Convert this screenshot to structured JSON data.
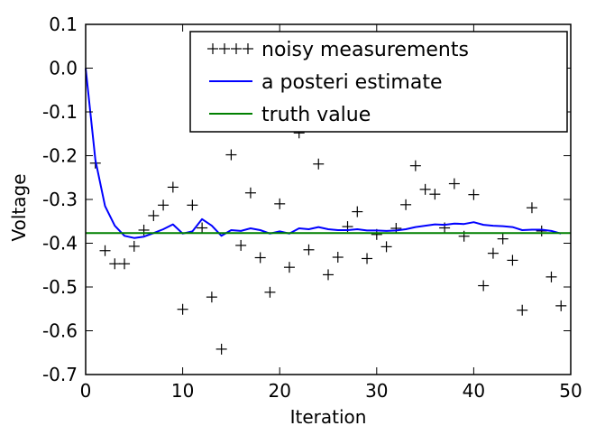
{
  "chart_data": {
    "type": "line",
    "title": "",
    "xlabel": "Iteration",
    "ylabel": "Voltage",
    "xlim": [
      0,
      50
    ],
    "ylim": [
      -0.7,
      0.1
    ],
    "xticks": [
      0,
      10,
      20,
      30,
      40,
      50
    ],
    "yticks": [
      0.1,
      0.0,
      -0.1,
      -0.2,
      -0.3,
      -0.4,
      -0.5,
      -0.6,
      -0.7
    ],
    "xtick_labels": [
      "0",
      "10",
      "20",
      "30",
      "40",
      "50"
    ],
    "ytick_labels": [
      "0.1",
      "0.0",
      "-0.1",
      "-0.2",
      "-0.3",
      "-0.4",
      "-0.5",
      "-0.6",
      "-0.7"
    ],
    "grid": false,
    "legend_position": "top-right",
    "series": [
      {
        "name": "noisy measurements",
        "style": "markers",
        "marker": "+",
        "color": "#000000",
        "x": [
          1,
          2,
          3,
          4,
          5,
          6,
          7,
          8,
          9,
          10,
          11,
          12,
          13,
          14,
          15,
          16,
          17,
          18,
          19,
          20,
          21,
          22,
          23,
          24,
          25,
          26,
          27,
          28,
          29,
          30,
          31,
          32,
          33,
          34,
          35,
          36,
          37,
          38,
          39,
          40,
          41,
          42,
          43,
          44,
          45,
          46,
          47,
          48,
          49
        ],
        "values": [
          -0.217,
          -0.417,
          -0.447,
          -0.447,
          -0.407,
          -0.37,
          -0.337,
          -0.313,
          -0.272,
          -0.551,
          -0.313,
          -0.365,
          -0.523,
          -0.642,
          -0.198,
          -0.405,
          -0.285,
          -0.433,
          -0.512,
          -0.31,
          -0.455,
          -0.148,
          -0.415,
          -0.219,
          -0.472,
          -0.432,
          -0.362,
          -0.328,
          -0.435,
          -0.38,
          -0.408,
          -0.366,
          -0.312,
          -0.223,
          -0.277,
          -0.288,
          -0.365,
          -0.264,
          -0.384,
          -0.289,
          -0.497,
          -0.423,
          -0.39,
          -0.439,
          -0.553,
          -0.319,
          -0.372,
          -0.477,
          -0.543
        ]
      },
      {
        "name": "a posteri estimate",
        "style": "line",
        "color": "#0000ff",
        "x": [
          0,
          1,
          2,
          3,
          4,
          5,
          6,
          7,
          8,
          9,
          10,
          11,
          12,
          13,
          14,
          15,
          16,
          17,
          18,
          19,
          20,
          21,
          22,
          23,
          24,
          25,
          26,
          27,
          28,
          29,
          30,
          31,
          32,
          33,
          34,
          35,
          36,
          37,
          38,
          39,
          40,
          41,
          42,
          43,
          44,
          45,
          46,
          47,
          48,
          49
        ],
        "values": [
          0.0,
          -0.21,
          -0.315,
          -0.36,
          -0.383,
          -0.388,
          -0.385,
          -0.377,
          -0.368,
          -0.357,
          -0.378,
          -0.373,
          -0.345,
          -0.36,
          -0.383,
          -0.37,
          -0.372,
          -0.366,
          -0.37,
          -0.378,
          -0.373,
          -0.378,
          -0.366,
          -0.368,
          -0.363,
          -0.368,
          -0.37,
          -0.37,
          -0.368,
          -0.371,
          -0.371,
          -0.372,
          -0.371,
          -0.368,
          -0.363,
          -0.36,
          -0.357,
          -0.358,
          -0.355,
          -0.356,
          -0.352,
          -0.358,
          -0.36,
          -0.361,
          -0.363,
          -0.37,
          -0.369,
          -0.369,
          -0.372,
          -0.378
        ]
      },
      {
        "name": "truth value",
        "style": "line",
        "color": "#008000",
        "x": [
          0,
          50
        ],
        "values": [
          -0.377,
          -0.377
        ]
      }
    ]
  }
}
